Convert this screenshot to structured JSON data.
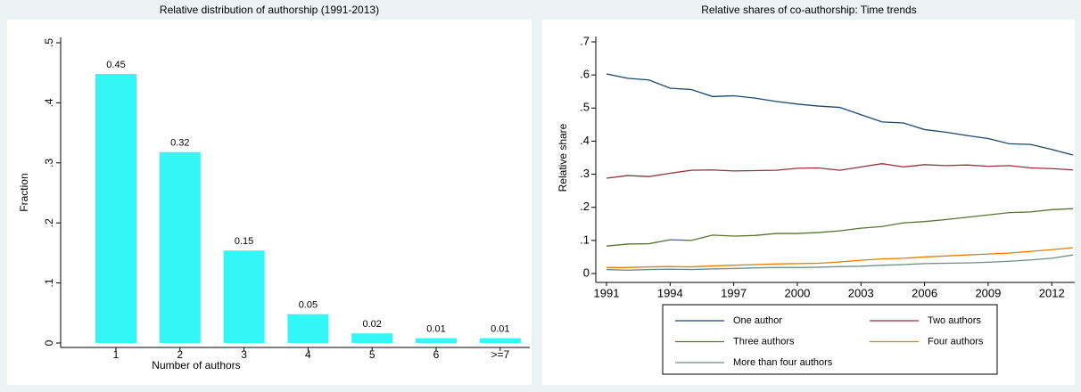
{
  "chart_data": [
    {
      "type": "bar",
      "title": "Relative distribution of authorship (1991-2013)",
      "xlabel": "Number of authors",
      "ylabel": "Fraction",
      "categories": [
        "1",
        "2",
        "3",
        "4",
        "5",
        "6",
        ">=7"
      ],
      "values": [
        0.448,
        0.318,
        0.154,
        0.048,
        0.016,
        0.008,
        0.008
      ],
      "value_labels": [
        "0.45",
        "0.32",
        "0.15",
        "0.05",
        "0.02",
        "0.01",
        "0.01"
      ],
      "color": "#33f6f6",
      "ylim": [
        0,
        0.5
      ],
      "yticks": [
        0,
        {
          "value": 0.1,
          "label": ".1"
        },
        {
          "value": 0.2,
          "label": ".2"
        },
        {
          "value": 0.3,
          "label": ".3"
        },
        {
          "value": 0.4,
          "label": ".4"
        },
        {
          "value": 0.5,
          "label": ".5"
        }
      ]
    },
    {
      "type": "line",
      "title": "Relative shares of co-authorship: Time trends",
      "ylabel": "Relative share",
      "x": [
        1991,
        1992,
        1993,
        1994,
        1995,
        1996,
        1997,
        1998,
        1999,
        2000,
        2001,
        2002,
        2003,
        2004,
        2005,
        2006,
        2007,
        2008,
        2009,
        2010,
        2011,
        2012,
        2013
      ],
      "series": [
        {
          "name": "One author",
          "color": "#1a476f",
          "values": [
            0.603,
            0.59,
            0.585,
            0.56,
            0.556,
            0.535,
            0.537,
            0.53,
            0.52,
            0.512,
            0.506,
            0.502,
            0.48,
            0.458,
            0.455,
            0.435,
            0.427,
            0.417,
            0.408,
            0.392,
            0.39,
            0.375,
            0.358
          ]
        },
        {
          "name": "Two authors",
          "color": "#90353b",
          "values": [
            0.288,
            0.296,
            0.293,
            0.303,
            0.312,
            0.313,
            0.31,
            0.311,
            0.312,
            0.318,
            0.319,
            0.312,
            0.322,
            0.332,
            0.322,
            0.329,
            0.326,
            0.328,
            0.324,
            0.326,
            0.319,
            0.317,
            0.313
          ]
        },
        {
          "name": "Three authors",
          "color": "#55752f",
          "values": [
            0.083,
            0.089,
            0.09,
            0.102,
            0.1,
            0.116,
            0.113,
            0.115,
            0.121,
            0.121,
            0.124,
            0.129,
            0.137,
            0.142,
            0.153,
            0.157,
            0.163,
            0.17,
            0.177,
            0.184,
            0.186,
            0.193,
            0.196
          ]
        },
        {
          "name": "Four authors",
          "color": "#e37e00",
          "values": [
            0.018,
            0.018,
            0.02,
            0.021,
            0.02,
            0.023,
            0.025,
            0.027,
            0.029,
            0.03,
            0.031,
            0.035,
            0.04,
            0.044,
            0.046,
            0.05,
            0.053,
            0.056,
            0.059,
            0.062,
            0.067,
            0.072,
            0.078
          ]
        },
        {
          "name": "More than four authors",
          "color": "#6e8e84",
          "values": [
            0.012,
            0.01,
            0.012,
            0.013,
            0.012,
            0.014,
            0.015,
            0.017,
            0.018,
            0.018,
            0.019,
            0.021,
            0.022,
            0.025,
            0.027,
            0.03,
            0.031,
            0.032,
            0.034,
            0.037,
            0.041,
            0.046,
            0.056
          ]
        }
      ],
      "xlim": [
        1991,
        2013
      ],
      "xticks": [
        1991,
        1994,
        1997,
        2000,
        2003,
        2006,
        2009,
        2012
      ],
      "ylim": [
        0,
        0.7
      ],
      "yticks": [
        0,
        {
          "value": 0.1,
          "label": ".1"
        },
        {
          "value": 0.2,
          "label": ".2"
        },
        {
          "value": 0.3,
          "label": ".3"
        },
        {
          "value": 0.4,
          "label": ".4"
        },
        {
          "value": 0.5,
          "label": ".5"
        },
        {
          "value": 0.6,
          "label": ".6"
        },
        {
          "value": 0.7,
          "label": ".7"
        }
      ]
    }
  ]
}
